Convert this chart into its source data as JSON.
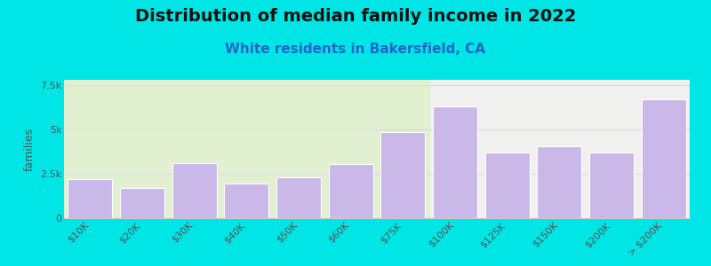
{
  "title": "Distribution of median family income in 2022",
  "subtitle": "White residents in Bakersfield, CA",
  "ylabel": "families",
  "categories": [
    "$10K",
    "$20K",
    "$30K",
    "$40K",
    "$50K",
    "$60K",
    "$75K",
    "$100K",
    "$125K",
    "$150K",
    "$200K",
    "> $200K"
  ],
  "values": [
    2200,
    1700,
    3100,
    1950,
    2300,
    3050,
    4850,
    6300,
    3700,
    4050,
    3700,
    6700
  ],
  "bar_color": "#c9b8e8",
  "background_color": "#00e5e5",
  "plot_bg_left": "#e0f0d0",
  "plot_bg_right": "#f0f0ee",
  "title_color": "#111111",
  "subtitle_color": "#2266cc",
  "ylabel_color": "#555555",
  "tick_color": "#555555",
  "grid_color": "#dddddd",
  "spine_color": "#cccccc",
  "title_fontsize": 14,
  "subtitle_fontsize": 11,
  "ylabel_fontsize": 9,
  "tick_fontsize": 8,
  "ylim": [
    0,
    7800
  ],
  "yticks": [
    0,
    2500,
    5000,
    7500
  ],
  "ytick_labels": [
    "0",
    "2.5k",
    "5k",
    "7.5k"
  ],
  "green_bars": 7
}
